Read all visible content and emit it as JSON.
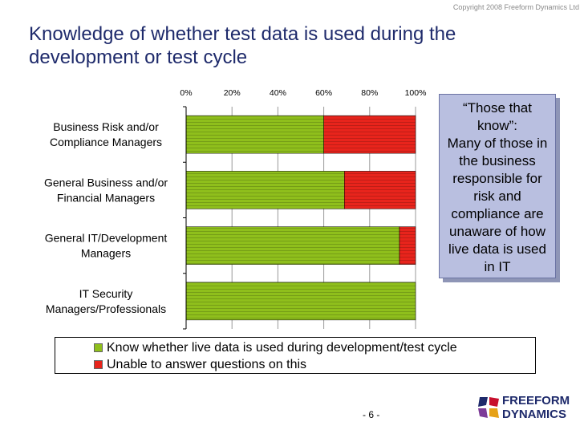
{
  "copyright": "Copyright 2008 Freeform Dynamics Ltd",
  "page_number": "- 6 -",
  "callout": {
    "quote": "“Those that know”:",
    "text": "Many of those in the business responsible for risk and compliance are unaware of how live data is used in IT"
  },
  "logo": {
    "line1": "FREEFORM",
    "line2": "DYNAMICS"
  },
  "colors": {
    "green": "#8fbf1c",
    "red": "#e8241c",
    "title": "#1e2a6b",
    "callout_bg": "#b9bfe0"
  },
  "chart_data": {
    "type": "bar",
    "orientation": "horizontal",
    "stacked": true,
    "percent": true,
    "title": "Knowledge of whether test data is used during the development or test cycle",
    "categories": [
      "Business Risk and/or Compliance Managers",
      "General Business and/or Financial Managers",
      "General IT/Development Managers",
      "IT Security Managers/Professionals"
    ],
    "series": [
      {
        "name": "Know whether live data is used during development/test cycle",
        "values": [
          60,
          69,
          93,
          100
        ],
        "color": "#8fbf1c"
      },
      {
        "name": "Unable to answer questions on this",
        "values": [
          40,
          31,
          7,
          0
        ],
        "color": "#e8241c"
      }
    ],
    "xlim": [
      0,
      100
    ],
    "x_ticks": [
      "0%",
      "20%",
      "40%",
      "60%",
      "80%",
      "100%"
    ],
    "grid": true,
    "legend_position": "bottom"
  }
}
